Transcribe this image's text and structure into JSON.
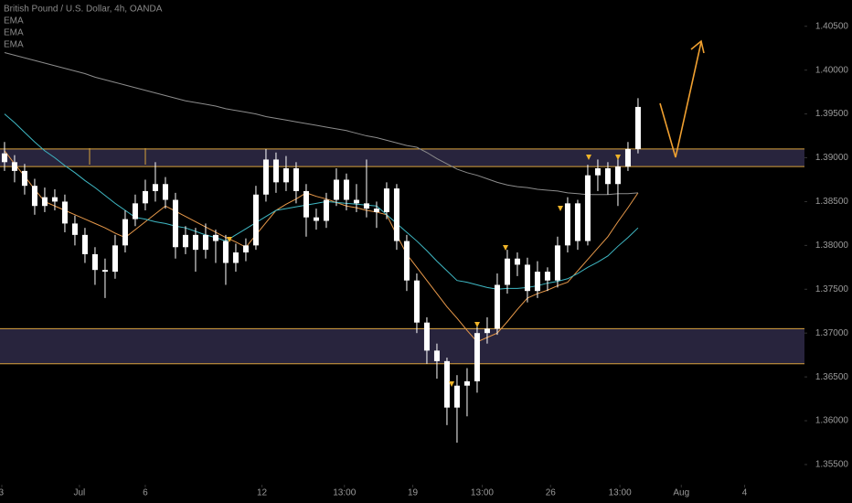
{
  "chart_data": {
    "type": "candlestick",
    "title": "British Pound / U.S. Dollar, 4h, OANDA",
    "candle_color": "#ffffff",
    "candles": {
      "open": [
        1.3905,
        1.3895,
        1.3885,
        1.3868,
        1.3845,
        1.3855,
        1.385,
        1.3825,
        1.3812,
        1.379,
        1.3772,
        1.377,
        1.38,
        1.383,
        1.3848,
        1.3862,
        1.387,
        1.3852,
        1.3798,
        1.3812,
        1.3795,
        1.3812,
        1.3805,
        1.378,
        1.3792,
        1.38,
        1.3858,
        1.3898,
        1.3872,
        1.3888,
        1.3862,
        1.3832,
        1.3828,
        1.3852,
        1.3875,
        1.3852,
        1.3848,
        1.3842,
        1.3838,
        1.3865,
        1.3805,
        1.376,
        1.3712,
        1.368,
        1.3668,
        1.3615,
        1.364,
        1.3645,
        1.37,
        1.3705,
        1.3755,
        1.3785,
        1.3778,
        1.3748,
        1.377,
        1.376,
        1.38,
        1.3848,
        1.3805,
        1.388,
        1.3888,
        1.387,
        1.389,
        1.391
      ],
      "high": [
        1.3918,
        1.3903,
        1.3893,
        1.3876,
        1.3866,
        1.3864,
        1.3858,
        1.3834,
        1.382,
        1.3798,
        1.3785,
        1.3812,
        1.384,
        1.3858,
        1.3875,
        1.3895,
        1.3878,
        1.386,
        1.3822,
        1.382,
        1.3825,
        1.3818,
        1.3812,
        1.3802,
        1.3808,
        1.3868,
        1.391,
        1.3906,
        1.3902,
        1.3895,
        1.387,
        1.3842,
        1.386,
        1.3888,
        1.3882,
        1.387,
        1.3898,
        1.385,
        1.3872,
        1.387,
        1.3812,
        1.3768,
        1.3718,
        1.3688,
        1.3672,
        1.3652,
        1.366,
        1.3708,
        1.3718,
        1.3768,
        1.3795,
        1.3792,
        1.3786,
        1.3782,
        1.3775,
        1.381,
        1.3855,
        1.3852,
        1.3892,
        1.3898,
        1.3895,
        1.39,
        1.3918,
        1.3968
      ],
      "low": [
        1.3885,
        1.3872,
        1.3858,
        1.3835,
        1.3838,
        1.384,
        1.3815,
        1.38,
        1.378,
        1.3755,
        1.374,
        1.3762,
        1.3792,
        1.3822,
        1.384,
        1.385,
        1.3842,
        1.3785,
        1.379,
        1.377,
        1.3785,
        1.378,
        1.3755,
        1.377,
        1.3782,
        1.3795,
        1.385,
        1.386,
        1.3862,
        1.3848,
        1.381,
        1.3818,
        1.382,
        1.3845,
        1.384,
        1.3838,
        1.3832,
        1.382,
        1.383,
        1.3795,
        1.3748,
        1.37,
        1.3665,
        1.3648,
        1.3595,
        1.3575,
        1.3605,
        1.3632,
        1.3688,
        1.3698,
        1.3745,
        1.3765,
        1.3735,
        1.374,
        1.3748,
        1.3752,
        1.3792,
        1.3795,
        1.38,
        1.3862,
        1.3858,
        1.3845,
        1.3885,
        1.3905
      ],
      "close": [
        1.3895,
        1.3885,
        1.3868,
        1.3845,
        1.3855,
        1.385,
        1.3825,
        1.3812,
        1.379,
        1.3772,
        1.377,
        1.38,
        1.383,
        1.3848,
        1.3862,
        1.387,
        1.3852,
        1.3798,
        1.3812,
        1.3795,
        1.3812,
        1.3805,
        1.378,
        1.3792,
        1.38,
        1.3858,
        1.3898,
        1.3872,
        1.3888,
        1.3862,
        1.3832,
        1.3828,
        1.3852,
        1.3875,
        1.3852,
        1.3848,
        1.3842,
        1.3838,
        1.3865,
        1.3805,
        1.376,
        1.3712,
        1.368,
        1.3668,
        1.3615,
        1.364,
        1.3645,
        1.37,
        1.3705,
        1.3755,
        1.3785,
        1.3778,
        1.3748,
        1.377,
        1.376,
        1.38,
        1.3848,
        1.3805,
        1.388,
        1.3888,
        1.387,
        1.389,
        1.391,
        1.3958
      ]
    },
    "indicators": [
      {
        "name": "EMA",
        "color": "#e8994a",
        "values": [
          1.3908,
          1.3893,
          1.3879,
          1.3864,
          1.385,
          1.3845,
          1.384,
          1.3835,
          1.383,
          1.3825,
          1.382,
          1.3814,
          1.3809,
          1.3818,
          1.3827,
          1.3836,
          1.3845,
          1.3839,
          1.3833,
          1.3827,
          1.3821,
          1.3815,
          1.3809,
          1.3804,
          1.3798,
          1.3812,
          1.3826,
          1.384,
          1.3847,
          1.3853,
          1.386,
          1.3856,
          1.3853,
          1.3849,
          1.3845,
          1.3843,
          1.384,
          1.3838,
          1.3835,
          1.3812,
          1.379,
          1.3775,
          1.376,
          1.3745,
          1.373,
          1.3717,
          1.3703,
          1.369,
          1.3695,
          1.37,
          1.3713,
          1.3727,
          1.374,
          1.3745,
          1.3749,
          1.3754,
          1.3758,
          1.3771,
          1.3784,
          1.3797,
          1.381,
          1.3827,
          1.3843,
          1.386
        ]
      },
      {
        "name": "EMA",
        "color": "#3fb8c4",
        "values": [
          1.395,
          1.394,
          1.3929,
          1.3918,
          1.3908,
          1.39,
          1.3891,
          1.3883,
          1.3874,
          1.3866,
          1.3857,
          1.3848,
          1.384,
          1.3832,
          1.383,
          1.3827,
          1.3825,
          1.3822,
          1.382,
          1.3816,
          1.3812,
          1.3809,
          1.3805,
          1.3812,
          1.3819,
          1.3826,
          1.3833,
          1.384,
          1.3842,
          1.3844,
          1.3846,
          1.3848,
          1.385,
          1.3849,
          1.3848,
          1.3847,
          1.3846,
          1.3845,
          1.3835,
          1.3825,
          1.3815,
          1.3805,
          1.3794,
          1.3782,
          1.3771,
          1.376,
          1.3758,
          1.3755,
          1.3752,
          1.375,
          1.3751,
          1.3751,
          1.3752,
          1.3754,
          1.3757,
          1.3759,
          1.3762,
          1.3768,
          1.3775,
          1.3781,
          1.3788,
          1.3799,
          1.3809,
          1.382
        ]
      },
      {
        "name": "EMA",
        "color": "#8c8c8c",
        "values": [
          1.402,
          1.4017,
          1.4014,
          1.4011,
          1.4008,
          1.4005,
          1.4002,
          1.3999,
          1.3996,
          1.3992,
          1.3989,
          1.3986,
          1.3983,
          1.398,
          1.3977,
          1.3974,
          1.3971,
          1.3968,
          1.3965,
          1.3963,
          1.3961,
          1.3959,
          1.3956,
          1.3954,
          1.3952,
          1.395,
          1.3947,
          1.3945,
          1.3943,
          1.3941,
          1.3939,
          1.3937,
          1.3935,
          1.3933,
          1.3931,
          1.3928,
          1.3925,
          1.3923,
          1.392,
          1.3917,
          1.3914,
          1.3912,
          1.3906,
          1.3899,
          1.3893,
          1.3887,
          1.3883,
          1.388,
          1.3876,
          1.3872,
          1.3869,
          1.3867,
          1.3866,
          1.3864,
          1.3863,
          1.3862,
          1.386,
          1.3859,
          1.3858,
          1.3858,
          1.3858,
          1.3859,
          1.3859,
          1.386
        ]
      }
    ],
    "zones": [
      {
        "low": 1.389,
        "high": 1.391
      },
      {
        "low": 1.3665,
        "high": 1.3705
      }
    ],
    "zone_fill": "#28243d",
    "zone_border": "#d9a23c",
    "xlim": [
      -0.45,
      79.55
    ],
    "xticks": [
      {
        "value": -0.27,
        "label": "3"
      },
      {
        "value": 7.45,
        "label": "Jul"
      },
      {
        "value": 14,
        "label": "6"
      },
      {
        "value": 25.6,
        "label": "12"
      },
      {
        "value": 33.8,
        "label": "13:00"
      },
      {
        "value": 40.6,
        "label": "19"
      },
      {
        "value": 47.5,
        "label": "13:00"
      },
      {
        "value": 54.3,
        "label": "26"
      },
      {
        "value": 61.2,
        "label": "13:00"
      },
      {
        "value": 67.3,
        "label": "Aug"
      },
      {
        "value": 73.6,
        "label": "4"
      }
    ],
    "ylim": [
      1.3527,
      1.408
    ],
    "yticks": [
      {
        "value": 1.405,
        "label": "1.40500"
      },
      {
        "value": 1.4,
        "label": "1.40000"
      },
      {
        "value": 1.395,
        "label": "1.39500"
      },
      {
        "value": 1.39,
        "label": "1.39000"
      },
      {
        "value": 1.385,
        "label": "1.38500"
      },
      {
        "value": 1.38,
        "label": "1.38000"
      },
      {
        "value": 1.375,
        "label": "1.37500"
      },
      {
        "value": 1.37,
        "label": "1.37000"
      },
      {
        "value": 1.365,
        "label": "1.36500"
      },
      {
        "value": 1.36,
        "label": "1.36000"
      },
      {
        "value": 1.355,
        "label": "1.35500"
      }
    ]
  }
}
